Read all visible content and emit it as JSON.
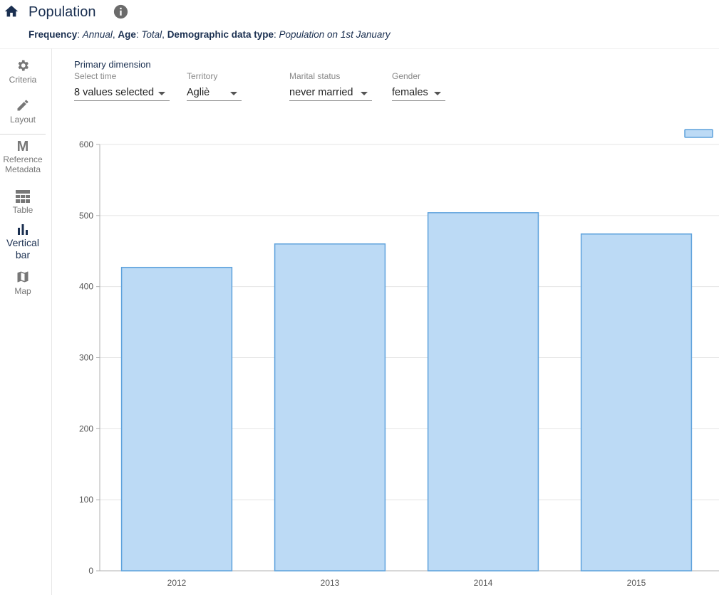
{
  "header": {
    "title": "Population",
    "filters": [
      {
        "key": "Frequency",
        "value": "Annual",
        "sep": ",  "
      },
      {
        "key": "Age",
        "value": "Total",
        "sep": ",  "
      },
      {
        "key": "Demographic data type",
        "value": "Population on 1st January",
        "sep": ""
      }
    ]
  },
  "sidebar": {
    "items": [
      {
        "label": "Criteria",
        "icon": "gear-icon"
      },
      {
        "label": "Layout",
        "icon": "pencil-icon"
      },
      {
        "label": "Reference Metadata",
        "icon": "metadata-m-icon",
        "glyph": "M"
      },
      {
        "label": "Table",
        "icon": "table-icon"
      },
      {
        "label": "Vertical bar",
        "icon": "bar-chart-icon",
        "active": true
      },
      {
        "label": "Map",
        "icon": "map-icon"
      }
    ]
  },
  "controls": {
    "primary_dimension_label": "Primary dimension",
    "selects": [
      {
        "label": "Select time",
        "value": "8 values selected"
      },
      {
        "label": "Territory",
        "value": "Agliè"
      },
      {
        "label": "Marital status",
        "value": "never married"
      },
      {
        "label": "Gender",
        "value": "females"
      }
    ]
  },
  "colors": {
    "accent": "#1a2f50",
    "bar_fill": "#bcdaf5",
    "bar_stroke": "#5ea2dc",
    "grid": "#e4e4e4"
  },
  "chart_data": {
    "type": "bar",
    "categories": [
      "2012",
      "2013",
      "2014",
      "2015"
    ],
    "values": [
      427,
      460,
      504,
      474
    ],
    "ylim": [
      0,
      600
    ],
    "yticks": [
      0,
      100,
      200,
      300,
      400,
      500,
      600
    ],
    "grid": true,
    "legend": "top-right"
  }
}
